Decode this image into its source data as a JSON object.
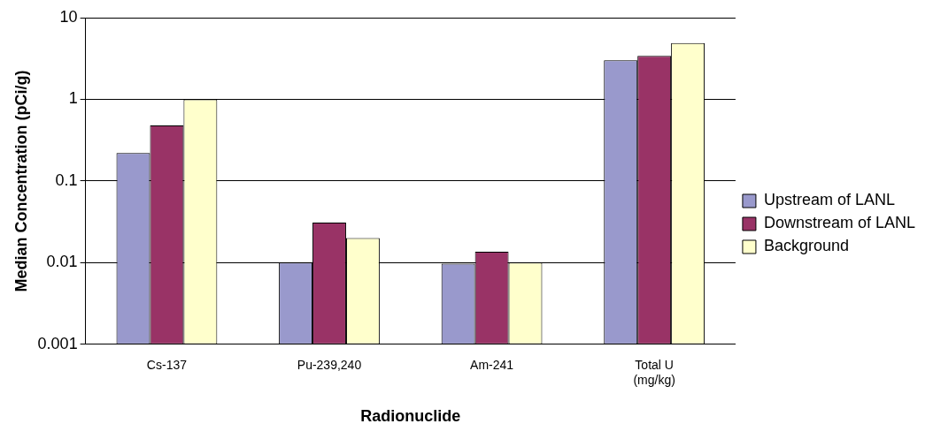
{
  "chart_data": {
    "type": "bar",
    "xlabel": "Radionuclide",
    "ylabel": "Median Concentration (pCi/g)",
    "categories": [
      "Cs-137",
      "Pu-239,240",
      "Am-241",
      "Total U\n(mg/kg)"
    ],
    "series": [
      {
        "name": "Upstream of LANL",
        "color": "#9999cc",
        "values": [
          0.22,
          0.01,
          0.0097,
          3.0
        ]
      },
      {
        "name": "Downstream of LANL",
        "color": "#993366",
        "values": [
          0.48,
          0.031,
          0.0136,
          3.4
        ]
      },
      {
        "name": "Background",
        "color": "#ffffcc",
        "values": [
          1.0,
          0.02,
          0.01,
          4.9
        ]
      }
    ],
    "log": "y",
    "ylim": [
      0.001,
      10
    ],
    "yticks": [
      0.001,
      0.01,
      0.1,
      1,
      10
    ],
    "grid": "y",
    "legend": "right"
  }
}
